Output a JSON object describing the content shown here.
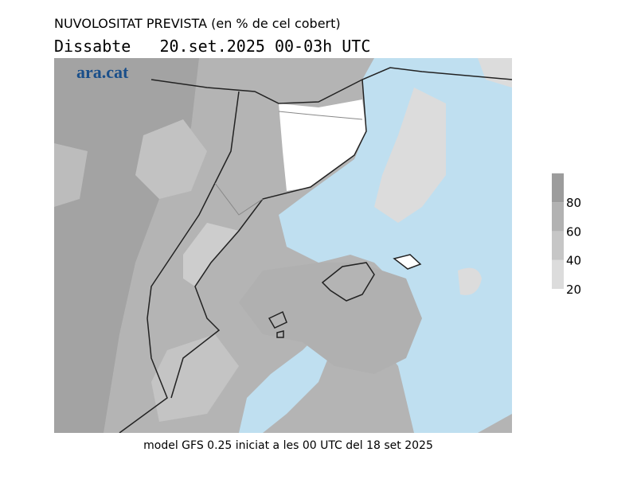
{
  "header": {
    "title": "NUVOLOSITAT PREVISTA (en % de cel cobert)",
    "subtitle": "Dissabte   20.set.2025 00-03h UTC"
  },
  "logo": "ara.cat",
  "colorbar": {
    "ticks": [
      20,
      40,
      60,
      80
    ],
    "colors": [
      "#dcdcdc",
      "#c6c6c6",
      "#b2b2b2",
      "#9c9c9c"
    ]
  },
  "footer": "model GFS 0.25 iniciat a les 00 UTC del 18 set 2025"
}
